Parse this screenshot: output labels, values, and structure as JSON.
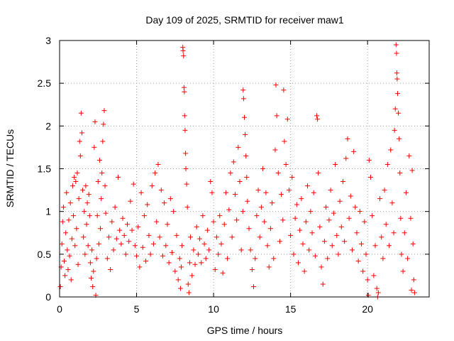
{
  "chart_data": {
    "type": "scatter",
    "title": "Day 109 of 2025, SRMTID for receiver maw1",
    "xlabel": "GPS time / hours",
    "ylabel": "SRMTID / TECUs",
    "xlim": [
      0,
      24
    ],
    "ylim": [
      0,
      3
    ],
    "x_ticks": [
      0,
      5,
      10,
      15,
      20
    ],
    "x_tick_labels": [
      "0",
      "5",
      "10",
      "15",
      "20"
    ],
    "y_ticks": [
      0,
      0.5,
      1,
      1.5,
      2,
      2.5,
      3
    ],
    "y_tick_labels": [
      "0",
      "0.5",
      "1",
      "1.5",
      "2",
      "2.5",
      "3"
    ],
    "grid": true,
    "marker": "+",
    "color": "#ff0000",
    "series": [
      {
        "name": "maw1",
        "points": [
          [
            0.05,
            0.12
          ],
          [
            0.1,
            0.35
          ],
          [
            0.15,
            0.62
          ],
          [
            0.2,
            0.88
          ],
          [
            0.25,
            1.05
          ],
          [
            0.3,
            0.42
          ],
          [
            0.35,
            0.25
          ],
          [
            0.4,
            0.75
          ],
          [
            0.45,
            1.22
          ],
          [
            0.5,
            0.55
          ],
          [
            0.55,
            0.32
          ],
          [
            0.6,
            0.9
          ],
          [
            0.65,
            0.48
          ],
          [
            0.7,
            1.1
          ],
          [
            0.75,
            0.2
          ],
          [
            0.8,
            0.68
          ],
          [
            0.85,
            1.3
          ],
          [
            0.9,
            0.95
          ],
          [
            0.95,
            1.4
          ],
          [
            1.0,
            0.6
          ],
          [
            1.05,
            1.35
          ],
          [
            1.1,
            0.8
          ],
          [
            1.15,
            1.45
          ],
          [
            1.2,
            0.38
          ],
          [
            1.25,
            1.15
          ],
          [
            1.3,
            1.82
          ],
          [
            1.35,
            1.65
          ],
          [
            1.4,
            2.15
          ],
          [
            1.45,
            1.92
          ],
          [
            1.5,
            1.25
          ],
          [
            1.55,
            0.7
          ],
          [
            1.6,
            1.0
          ],
          [
            1.65,
            0.5
          ],
          [
            1.7,
            1.3
          ],
          [
            1.75,
            0.85
          ],
          [
            1.8,
            1.1
          ],
          [
            1.85,
            0.6
          ],
          [
            1.9,
            1.2
          ],
          [
            1.95,
            0.95
          ],
          [
            2.0,
            0.4
          ],
          [
            2.05,
            0.22
          ],
          [
            2.1,
            0.55
          ],
          [
            2.15,
            0.12
          ],
          [
            2.2,
            0.3
          ],
          [
            2.25,
            1.75
          ],
          [
            2.3,
            2.05
          ],
          [
            2.35,
            0.02
          ],
          [
            2.4,
            0.45
          ],
          [
            2.45,
            0.95
          ],
          [
            2.5,
            1.35
          ],
          [
            2.55,
            0.62
          ],
          [
            2.6,
            1.6
          ],
          [
            2.65,
            0.8
          ],
          [
            2.7,
            1.15
          ],
          [
            2.75,
            1.45
          ],
          [
            2.8,
            1.82
          ],
          [
            2.85,
            2.02
          ],
          [
            2.9,
            2.18
          ],
          [
            2.95,
            1.3
          ],
          [
            3.0,
            0.98
          ],
          [
            3.1,
            0.45
          ],
          [
            3.2,
            0.7
          ],
          [
            3.3,
            0.32
          ],
          [
            3.4,
            0.88
          ],
          [
            3.5,
            0.55
          ],
          [
            3.6,
            1.05
          ],
          [
            3.7,
            0.68
          ],
          [
            3.8,
            1.4
          ],
          [
            3.9,
            0.78
          ],
          [
            4.0,
            0.62
          ],
          [
            4.1,
            0.92
          ],
          [
            4.2,
            0.72
          ],
          [
            4.3,
            0.5
          ],
          [
            4.4,
            0.85
          ],
          [
            4.5,
            0.65
          ],
          [
            4.6,
            1.12
          ],
          [
            4.7,
            0.78
          ],
          [
            4.8,
            1.32
          ],
          [
            4.9,
            0.6
          ],
          [
            5.0,
            0.48
          ],
          [
            5.1,
            0.82
          ],
          [
            5.2,
            0.35
          ],
          [
            5.3,
            1.22
          ],
          [
            5.4,
            0.58
          ],
          [
            5.5,
            0.95
          ],
          [
            5.6,
            0.42
          ],
          [
            5.7,
            1.08
          ],
          [
            5.8,
            0.72
          ],
          [
            5.9,
            0.5
          ],
          [
            6.0,
            1.3
          ],
          [
            6.1,
            0.62
          ],
          [
            6.2,
            1.45
          ],
          [
            6.3,
            0.88
          ],
          [
            6.4,
            1.55
          ],
          [
            6.5,
            0.7
          ],
          [
            6.6,
            1.25
          ],
          [
            6.7,
            0.48
          ],
          [
            6.8,
            1.1
          ],
          [
            6.9,
            0.6
          ],
          [
            7.0,
            0.85
          ],
          [
            7.1,
            0.4
          ],
          [
            7.2,
            1.15
          ],
          [
            7.3,
            0.52
          ],
          [
            7.4,
            1.0
          ],
          [
            7.5,
            0.3
          ],
          [
            7.6,
            0.72
          ],
          [
            7.7,
            0.2
          ],
          [
            7.8,
            0.45
          ],
          [
            7.85,
            0.1
          ],
          [
            7.9,
            0.35
          ],
          [
            7.95,
            0.6
          ],
          [
            8.0,
            2.92
          ],
          [
            8.02,
            2.88
          ],
          [
            8.05,
            2.82
          ],
          [
            8.08,
            2.45
          ],
          [
            8.1,
            2.4
          ],
          [
            8.12,
            2.12
          ],
          [
            8.15,
            1.95
          ],
          [
            8.18,
            1.68
          ],
          [
            8.2,
            1.5
          ],
          [
            8.25,
            1.32
          ],
          [
            8.3,
            1.05
          ],
          [
            8.35,
            0.15
          ],
          [
            8.4,
            0.05
          ],
          [
            8.45,
            0.4
          ],
          [
            8.5,
            0.7
          ],
          [
            8.6,
            0.25
          ],
          [
            8.7,
            0.55
          ],
          [
            8.8,
            0.38
          ],
          [
            8.9,
            0.82
          ],
          [
            9.0,
            0.5
          ],
          [
            9.1,
            0.68
          ],
          [
            9.2,
            0.4
          ],
          [
            9.3,
            0.95
          ],
          [
            9.4,
            0.62
          ],
          [
            9.5,
            0.45
          ],
          [
            9.6,
            0.78
          ],
          [
            9.7,
            0.55
          ],
          [
            9.8,
            1.35
          ],
          [
            9.9,
            1.22
          ],
          [
            10.0,
            0.88
          ],
          [
            10.1,
            0.32
          ],
          [
            10.2,
            0.7
          ],
          [
            10.3,
            0.5
          ],
          [
            10.4,
            0.95
          ],
          [
            10.5,
            0.62
          ],
          [
            10.6,
            0.28
          ],
          [
            10.7,
            0.85
          ],
          [
            10.8,
            1.22
          ],
          [
            10.9,
            0.45
          ],
          [
            11.0,
            1.02
          ],
          [
            11.1,
            1.45
          ],
          [
            11.2,
            0.7
          ],
          [
            11.3,
            1.58
          ],
          [
            11.4,
            1.2
          ],
          [
            11.5,
            0.9
          ],
          [
            11.6,
            1.75
          ],
          [
            11.7,
            1.35
          ],
          [
            11.8,
            0.55
          ],
          [
            11.9,
            1.0
          ],
          [
            11.92,
            2.42
          ],
          [
            11.95,
            2.32
          ],
          [
            12.0,
            2.1
          ],
          [
            12.05,
            1.9
          ],
          [
            12.1,
            1.65
          ],
          [
            12.15,
            1.4
          ],
          [
            12.2,
            1.12
          ],
          [
            12.3,
            0.8
          ],
          [
            12.4,
            0.55
          ],
          [
            12.5,
            0.32
          ],
          [
            12.6,
            0.12
          ],
          [
            12.7,
            0.45
          ],
          [
            12.8,
            0.95
          ],
          [
            12.9,
            1.25
          ],
          [
            13.0,
            0.7
          ],
          [
            13.1,
            1.05
          ],
          [
            13.2,
            1.5
          ],
          [
            13.3,
            0.88
          ],
          [
            13.4,
            1.22
          ],
          [
            13.5,
            0.6
          ],
          [
            13.6,
            0.35
          ],
          [
            13.7,
            0.8
          ],
          [
            13.8,
            1.1
          ],
          [
            13.9,
            0.45
          ],
          [
            14.0,
            1.72
          ],
          [
            14.05,
            2.48
          ],
          [
            14.1,
            2.12
          ],
          [
            14.2,
            1.45
          ],
          [
            14.3,
            0.65
          ],
          [
            14.4,
            1.2
          ],
          [
            14.5,
            0.9
          ],
          [
            14.55,
            2.42
          ],
          [
            14.6,
            1.82
          ],
          [
            14.7,
            1.55
          ],
          [
            14.8,
            2.08
          ],
          [
            14.9,
            1.25
          ],
          [
            15.0,
            0.72
          ],
          [
            15.1,
            1.4
          ],
          [
            15.2,
            0.5
          ],
          [
            15.3,
            0.92
          ],
          [
            15.4,
            1.08
          ],
          [
            15.5,
            0.4
          ],
          [
            15.6,
            0.78
          ],
          [
            15.7,
            1.15
          ],
          [
            15.8,
            0.62
          ],
          [
            15.9,
            0.3
          ],
          [
            16.0,
            0.88
          ],
          [
            16.1,
            1.3
          ],
          [
            16.2,
            0.55
          ],
          [
            16.3,
            1.0
          ],
          [
            16.4,
            0.75
          ],
          [
            16.5,
            1.22
          ],
          [
            16.6,
            0.48
          ],
          [
            16.7,
            2.12
          ],
          [
            16.75,
            2.08
          ],
          [
            16.8,
            1.45
          ],
          [
            16.9,
            0.82
          ],
          [
            17.0,
            0.35
          ],
          [
            17.1,
            0.15
          ],
          [
            17.2,
            0.65
          ],
          [
            17.3,
            1.05
          ],
          [
            17.4,
            0.45
          ],
          [
            17.5,
            0.9
          ],
          [
            17.6,
            1.25
          ],
          [
            17.7,
            0.6
          ],
          [
            17.8,
            0.98
          ],
          [
            17.9,
            1.55
          ],
          [
            18.0,
            0.72
          ],
          [
            18.1,
            0.5
          ],
          [
            18.2,
            1.12
          ],
          [
            18.3,
            0.82
          ],
          [
            18.4,
            1.35
          ],
          [
            18.5,
            0.65
          ],
          [
            18.6,
            1.62
          ],
          [
            18.7,
            1.85
          ],
          [
            18.8,
            0.92
          ],
          [
            18.9,
            1.18
          ],
          [
            19.0,
            0.55
          ],
          [
            19.1,
            1.7
          ],
          [
            19.2,
            1.05
          ],
          [
            19.3,
            0.75
          ],
          [
            19.4,
            0.42
          ],
          [
            19.5,
            1.0
          ],
          [
            19.6,
            0.62
          ],
          [
            19.7,
            0.3
          ],
          [
            19.8,
            0.88
          ],
          [
            19.9,
            0.5
          ],
          [
            20.0,
            0.2
          ],
          [
            20.05,
            0.02
          ],
          [
            20.1,
            1.6
          ],
          [
            20.2,
            1.4
          ],
          [
            20.3,
            0.95
          ],
          [
            20.4,
            0.25
          ],
          [
            20.5,
            0.6
          ],
          [
            20.6,
            0.1
          ],
          [
            20.65,
            0.0
          ],
          [
            20.7,
            0.05
          ],
          [
            20.8,
            1.15
          ],
          [
            20.9,
            0.7
          ],
          [
            21.0,
            0.45
          ],
          [
            21.1,
            1.25
          ],
          [
            21.2,
            0.85
          ],
          [
            21.3,
            1.55
          ],
          [
            21.4,
            0.6
          ],
          [
            21.5,
            1.72
          ],
          [
            21.6,
            1.1
          ],
          [
            21.7,
            0.75
          ],
          [
            21.75,
            1.95
          ],
          [
            21.8,
            2.2
          ],
          [
            21.85,
            2.95
          ],
          [
            21.88,
            2.85
          ],
          [
            21.9,
            2.62
          ],
          [
            21.92,
            2.55
          ],
          [
            21.95,
            2.38
          ],
          [
            22.0,
            2.15
          ],
          [
            22.05,
            1.85
          ],
          [
            22.1,
            1.45
          ],
          [
            22.15,
            0.92
          ],
          [
            22.2,
            0.5
          ],
          [
            22.3,
            0.3
          ],
          [
            22.4,
            0.75
          ],
          [
            22.5,
            1.22
          ],
          [
            22.6,
            0.45
          ],
          [
            22.7,
            1.65
          ],
          [
            22.8,
            0.92
          ],
          [
            22.85,
            0.08
          ],
          [
            22.9,
            1.48
          ],
          [
            22.95,
            0.62
          ],
          [
            23.0,
            0.2
          ],
          [
            23.05,
            0.05
          ]
        ]
      }
    ]
  }
}
